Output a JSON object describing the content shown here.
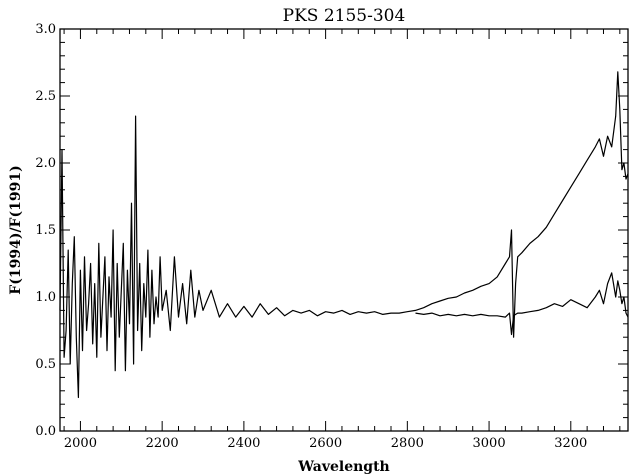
{
  "chart_data": {
    "type": "line",
    "title": "PKS 2155-304",
    "xlabel": "Wavelength",
    "ylabel": "F(1994)/F(1991)",
    "xlim": [
      1950,
      3340
    ],
    "ylim": [
      0.0,
      3.0
    ],
    "xticks": [
      2000,
      2200,
      2400,
      2600,
      2800,
      3000,
      3200
    ],
    "yticks": [
      0.0,
      0.5,
      1.0,
      1.5,
      2.0,
      2.5,
      3.0
    ],
    "grid": false,
    "series": [
      {
        "name": "",
        "color": "#000000",
        "x": [
          1950,
          1955,
          1960,
          1965,
          1970,
          1975,
          1980,
          1985,
          1990,
          1995,
          2000,
          2005,
          2010,
          2015,
          2020,
          2025,
          2030,
          2035,
          2040,
          2045,
          2050,
          2055,
          2060,
          2065,
          2070,
          2075,
          2080,
          2085,
          2090,
          2095,
          2100,
          2105,
          2110,
          2115,
          2120,
          2125,
          2130,
          2135,
          2140,
          2145,
          2150,
          2155,
          2160,
          2165,
          2170,
          2175,
          2180,
          2185,
          2190,
          2195,
          2200,
          2210,
          2220,
          2230,
          2240,
          2250,
          2260,
          2270,
          2280,
          2290,
          2300,
          2320,
          2340,
          2360,
          2380,
          2400,
          2420,
          2440,
          2460,
          2480,
          2500,
          2520,
          2540,
          2560,
          2580,
          2600,
          2620,
          2640,
          2660,
          2680,
          2700,
          2720,
          2740,
          2760,
          2780,
          2800,
          2820,
          2840,
          2860,
          2880,
          2900,
          2920,
          2940,
          2960,
          2980,
          3000,
          3020,
          3040,
          3050,
          3055,
          3060,
          3065,
          3070,
          3080,
          3100,
          3120,
          3140,
          3160,
          3180,
          3200,
          3220,
          3240,
          3260,
          3270,
          3280,
          3290,
          3300,
          3310,
          3315,
          3320,
          3325,
          3330,
          3335,
          3340
        ],
        "y": [
          0.9,
          2.1,
          0.55,
          0.75,
          1.35,
          0.5,
          1.1,
          1.45,
          0.7,
          0.25,
          1.2,
          0.6,
          1.3,
          0.75,
          0.95,
          1.25,
          0.65,
          1.1,
          0.55,
          1.4,
          0.7,
          1.0,
          1.3,
          0.6,
          1.15,
          0.85,
          1.5,
          0.45,
          1.25,
          0.7,
          1.05,
          1.4,
          0.45,
          1.2,
          0.8,
          1.7,
          0.5,
          2.35,
          0.75,
          1.25,
          0.6,
          1.1,
          0.85,
          1.35,
          0.7,
          1.2,
          0.8,
          1.0,
          0.85,
          1.3,
          0.9,
          1.05,
          0.75,
          1.3,
          0.85,
          1.1,
          0.8,
          1.2,
          0.85,
          1.05,
          0.9,
          1.05,
          0.85,
          0.95,
          0.85,
          0.93,
          0.85,
          0.95,
          0.87,
          0.92,
          0.86,
          0.9,
          0.88,
          0.9,
          0.86,
          0.89,
          0.88,
          0.9,
          0.87,
          0.89,
          0.88,
          0.89,
          0.87,
          0.88,
          0.88,
          0.89,
          0.9,
          0.92,
          0.95,
          0.97,
          0.99,
          1.0,
          1.03,
          1.05,
          1.08,
          1.1,
          1.15,
          1.25,
          1.3,
          1.5,
          0.7,
          1.1,
          1.3,
          1.33,
          1.4,
          1.45,
          1.52,
          1.62,
          1.72,
          1.82,
          1.92,
          2.02,
          2.12,
          2.18,
          2.05,
          2.2,
          2.12,
          2.35,
          2.68,
          2.4,
          1.95,
          2.0,
          1.88,
          1.92
        ]
      },
      {
        "name": "",
        "color": "#000000",
        "x": [
          2820,
          2840,
          2860,
          2880,
          2900,
          2920,
          2940,
          2960,
          2980,
          3000,
          3020,
          3040,
          3050,
          3055,
          3060,
          3065,
          3070,
          3080,
          3100,
          3120,
          3140,
          3160,
          3180,
          3200,
          3220,
          3240,
          3260,
          3270,
          3280,
          3290,
          3300,
          3310,
          3315,
          3320,
          3325,
          3330,
          3335,
          3340
        ],
        "y": [
          0.88,
          0.87,
          0.88,
          0.86,
          0.87,
          0.86,
          0.87,
          0.86,
          0.87,
          0.86,
          0.86,
          0.85,
          0.88,
          0.72,
          0.86,
          0.87,
          0.88,
          0.88,
          0.89,
          0.9,
          0.92,
          0.95,
          0.93,
          0.98,
          0.95,
          0.92,
          1.0,
          1.05,
          0.95,
          1.1,
          1.18,
          1.0,
          1.12,
          1.05,
          0.95,
          1.0,
          0.88,
          0.85
        ]
      }
    ]
  }
}
